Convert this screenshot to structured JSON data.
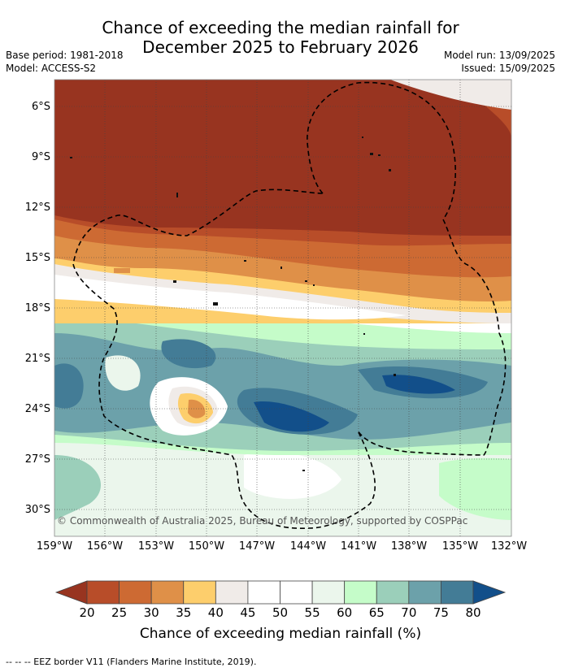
{
  "title_line1": "Chance of exceeding the median rainfall for",
  "title_line2": "December 2025 to February 2026",
  "base_period": "Base period: 1981-2018",
  "model": "Model: ACCESS-S2",
  "model_run": "Model run: 13/09/2025",
  "issued": "Issued: 15/09/2025",
  "copyright": "© Commonwealth of Australia 2025, Bureau of Meteorology, supported by COSPPac",
  "lat_labels": [
    "6°S",
    "9°S",
    "12°S",
    "15°S",
    "18°S",
    "21°S",
    "24°S",
    "27°S",
    "30°S"
  ],
  "lon_labels": [
    "159°W",
    "156°W",
    "153°W",
    "150°W",
    "147°W",
    "144°W",
    "141°W",
    "138°W",
    "135°W",
    "132°W"
  ],
  "colorbar": {
    "title": "Chance of exceeding median rainfall (%)",
    "ticks": [
      "20",
      "25",
      "30",
      "35",
      "40",
      "45",
      "50",
      "55",
      "60",
      "65",
      "70",
      "75",
      "80"
    ],
    "colors": [
      "#983420",
      "#b84d29",
      "#cd6a33",
      "#df9048",
      "#fdce6c",
      "#f0ebe8",
      "#ffffff",
      "#ffffff",
      "#ebf6ec",
      "#c5fcc9",
      "#9bcfba",
      "#6ca1aa",
      "#437c96",
      "#124f8a"
    ]
  },
  "footer": "--  --  -- EEZ border V11 (Flanders Marine Institute, 2019)."
}
